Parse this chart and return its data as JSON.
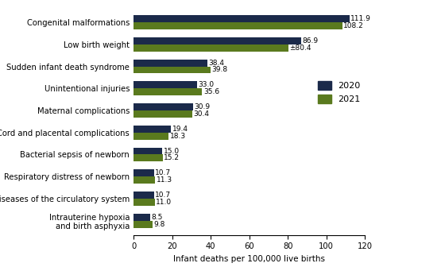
{
  "categories": [
    "Intrauterine hypoxia\nand birth asphyxia",
    "Diseases of the circulatory system",
    "Respiratory distress of newborn",
    "Bacterial sepsis of newborn",
    "Cord and placental complications",
    "Maternal complications",
    "Unintentional injuries",
    "Sudden infant death syndrome",
    "Low birth weight",
    "Congenital malformations"
  ],
  "values_2020": [
    8.5,
    10.7,
    10.7,
    15.0,
    19.4,
    30.9,
    33.0,
    38.4,
    86.9,
    111.9
  ],
  "values_2021": [
    9.8,
    11.0,
    11.3,
    15.2,
    18.3,
    30.4,
    35.6,
    39.8,
    80.4,
    108.2
  ],
  "labels_2020": [
    "8.5",
    "10.7",
    "10.7",
    "15.0",
    "19.4",
    "30.9",
    "33.0",
    "38.4",
    "86.9",
    "111.9"
  ],
  "labels_2021": [
    "9.8",
    "11.0",
    "11.3",
    "15.2",
    "18.3",
    "30.4",
    "35.6",
    "39.8",
    "±80.4",
    "108.2"
  ],
  "color_2020": "#1b2a4a",
  "color_2021": "#5a7a1e",
  "xlabel": "Infant deaths per 100,000 live births",
  "xlim": [
    0,
    120
  ],
  "xticks": [
    0,
    20,
    40,
    60,
    80,
    100,
    120
  ],
  "legend_2020": "2020",
  "legend_2021": "2021",
  "bar_height": 0.32,
  "label_fontsize": 6.5,
  "tick_fontsize": 7.2,
  "xlabel_fontsize": 7.5
}
